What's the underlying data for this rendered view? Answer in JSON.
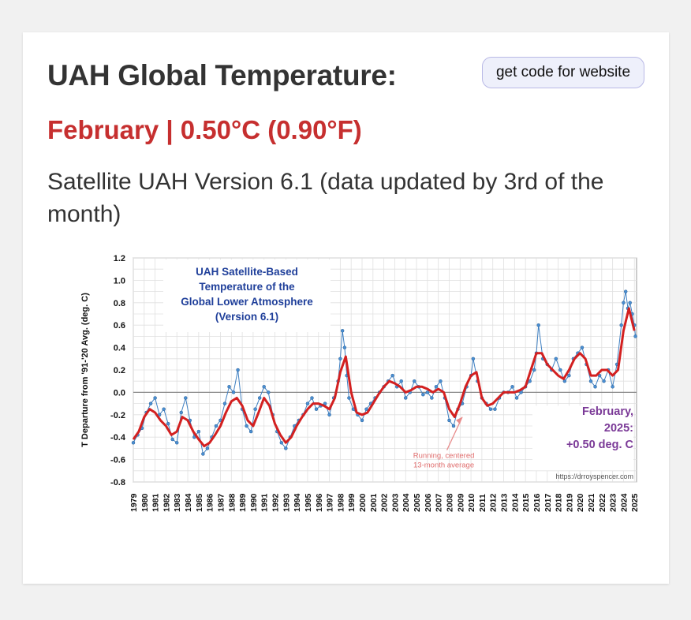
{
  "header": {
    "title": "UAH Global Temperature:",
    "code_button_label": "get code for website",
    "reading": "February | 0.50°C (0.90°F)",
    "subtitle": "Satellite UAH Version 6.1 (data updated by 3rd of the month)"
  },
  "colors": {
    "reading": "#c62f2f",
    "monthly_series": "#3e7fc1",
    "running_average": "#d32020",
    "inset_title": "#1f3f9a",
    "latest_value": "#7b3a97",
    "note_arrow": "#e88b8b"
  },
  "chart_data": {
    "type": "line",
    "title": "UAH Satellite-Based Temperature of the Global Lower Atmosphere (Version 6.1)",
    "title_lines": [
      "UAH Satellite-Based",
      "Temperature of the",
      "Global Lower Atmosphere",
      "(Version 6.1)"
    ],
    "ylabel": "T Departure from '91-'20 Avg. (deg. C)",
    "xlabel": "",
    "ylim": [
      -0.8,
      1.2
    ],
    "yticks": [
      "1.2",
      "1.0",
      "0.8",
      "0.6",
      "0.4",
      "0.2",
      "0.0",
      "-0.2",
      "-0.4",
      "-0.6",
      "-0.8"
    ],
    "xlim": [
      1979,
      2025.2
    ],
    "xticks": [
      "1979",
      "1980",
      "1981",
      "1982",
      "1983",
      "1984",
      "1985",
      "1986",
      "1987",
      "1988",
      "1989",
      "1990",
      "1991",
      "1992",
      "1993",
      "1994",
      "1995",
      "1996",
      "1997",
      "1998",
      "1999",
      "2000",
      "2001",
      "2002",
      "2003",
      "2004",
      "2005",
      "2006",
      "2007",
      "2008",
      "2009",
      "2010",
      "2011",
      "2012",
      "2013",
      "2014",
      "2015",
      "2016",
      "2017",
      "2018",
      "2019",
      "2020",
      "2021",
      "2022",
      "2023",
      "2024",
      "2025"
    ],
    "grid": true,
    "annotation_running": "Running, centered 13-month average",
    "annotation_running_lines": [
      "Running, centered",
      "13-month average"
    ],
    "annotation_latest_lines": [
      "February,",
      "2025:",
      "+0.50 deg. C"
    ],
    "credit": "https://drroyspencer.com",
    "series": [
      {
        "kind": "monthly",
        "x": [
          1979.0,
          1979.4,
          1979.8,
          1980.2,
          1980.6,
          1981.0,
          1981.4,
          1981.8,
          1982.2,
          1982.6,
          1983.0,
          1983.4,
          1983.8,
          1984.2,
          1984.6,
          1985.0,
          1985.4,
          1985.8,
          1986.2,
          1986.6,
          1987.0,
          1987.4,
          1987.8,
          1988.2,
          1988.6,
          1989.0,
          1989.4,
          1989.8,
          1990.2,
          1990.6,
          1991.0,
          1991.4,
          1991.8,
          1992.2,
          1992.6,
          1993.0,
          1993.4,
          1993.8,
          1994.2,
          1994.6,
          1995.0,
          1995.4,
          1995.8,
          1996.2,
          1996.6,
          1997.0,
          1997.4,
          1997.8,
          1998.0,
          1998.2,
          1998.4,
          1998.6,
          1998.8,
          1999.2,
          1999.6,
          2000.0,
          2000.4,
          2000.8,
          2001.2,
          2001.6,
          2002.0,
          2002.4,
          2002.8,
          2003.2,
          2003.6,
          2004.0,
          2004.4,
          2004.8,
          2005.2,
          2005.6,
          2006.0,
          2006.4,
          2006.8,
          2007.2,
          2007.6,
          2008.0,
          2008.4,
          2008.8,
          2009.2,
          2009.6,
          2010.0,
          2010.2,
          2010.6,
          2011.0,
          2011.4,
          2011.8,
          2012.2,
          2012.6,
          2013.0,
          2013.4,
          2013.8,
          2014.2,
          2014.6,
          2015.0,
          2015.4,
          2015.8,
          2016.0,
          2016.2,
          2016.6,
          2017.0,
          2017.4,
          2017.8,
          2018.2,
          2018.6,
          2019.0,
          2019.4,
          2019.8,
          2020.2,
          2020.6,
          2021.0,
          2021.4,
          2021.8,
          2022.2,
          2022.6,
          2023.0,
          2023.4,
          2023.8,
          2024.0,
          2024.2,
          2024.4,
          2024.6,
          2024.8,
          2025.0,
          2025.1
        ],
        "y": [
          -0.45,
          -0.38,
          -0.32,
          -0.18,
          -0.1,
          -0.05,
          -0.2,
          -0.15,
          -0.28,
          -0.42,
          -0.45,
          -0.18,
          -0.05,
          -0.25,
          -0.4,
          -0.35,
          -0.55,
          -0.5,
          -0.4,
          -0.3,
          -0.25,
          -0.1,
          0.05,
          0.0,
          0.2,
          -0.15,
          -0.3,
          -0.35,
          -0.15,
          -0.05,
          0.05,
          0.0,
          -0.2,
          -0.35,
          -0.45,
          -0.5,
          -0.4,
          -0.3,
          -0.25,
          -0.2,
          -0.1,
          -0.05,
          -0.15,
          -0.12,
          -0.1,
          -0.2,
          -0.05,
          0.1,
          0.3,
          0.55,
          0.4,
          0.15,
          -0.05,
          -0.15,
          -0.2,
          -0.25,
          -0.15,
          -0.1,
          -0.05,
          0.0,
          0.05,
          0.1,
          0.15,
          0.05,
          0.1,
          -0.05,
          0.0,
          0.1,
          0.05,
          -0.02,
          0.0,
          -0.05,
          0.05,
          0.1,
          -0.05,
          -0.25,
          -0.3,
          -0.15,
          -0.1,
          0.05,
          0.15,
          0.3,
          0.1,
          -0.05,
          -0.1,
          -0.15,
          -0.15,
          -0.05,
          0.0,
          0.0,
          0.05,
          -0.05,
          0.0,
          0.05,
          0.1,
          0.2,
          0.35,
          0.6,
          0.3,
          0.25,
          0.2,
          0.3,
          0.2,
          0.1,
          0.15,
          0.3,
          0.35,
          0.4,
          0.25,
          0.1,
          0.05,
          0.15,
          0.1,
          0.2,
          0.05,
          0.25,
          0.6,
          0.8,
          0.9,
          0.75,
          0.8,
          0.7,
          0.6,
          0.5
        ]
      },
      {
        "kind": "running-average",
        "name": "Running, centered 13-month average",
        "x": [
          1979.0,
          1979.5,
          1980.0,
          1980.5,
          1981.0,
          1981.5,
          1982.0,
          1982.5,
          1983.0,
          1983.5,
          1984.0,
          1984.5,
          1985.0,
          1985.5,
          1986.0,
          1986.5,
          1987.0,
          1987.5,
          1988.0,
          1988.5,
          1989.0,
          1989.5,
          1990.0,
          1990.5,
          1991.0,
          1991.5,
          1992.0,
          1992.5,
          1993.0,
          1993.5,
          1994.0,
          1994.5,
          1995.0,
          1995.5,
          1996.0,
          1996.5,
          1997.0,
          1997.5,
          1998.0,
          1998.5,
          1999.0,
          1999.5,
          2000.0,
          2000.5,
          2001.0,
          2001.5,
          2002.0,
          2002.5,
          2003.0,
          2003.5,
          2004.0,
          2004.5,
          2005.0,
          2005.5,
          2006.0,
          2006.5,
          2007.0,
          2007.5,
          2008.0,
          2008.5,
          2009.0,
          2009.5,
          2010.0,
          2010.5,
          2011.0,
          2011.5,
          2012.0,
          2012.5,
          2013.0,
          2013.5,
          2014.0,
          2014.5,
          2015.0,
          2015.5,
          2016.0,
          2016.5,
          2017.0,
          2017.5,
          2018.0,
          2018.5,
          2019.0,
          2019.5,
          2020.0,
          2020.5,
          2021.0,
          2021.5,
          2022.0,
          2022.5,
          2023.0,
          2023.5,
          2024.0,
          2024.5,
          2025.0
        ],
        "y": [
          -0.42,
          -0.35,
          -0.22,
          -0.15,
          -0.18,
          -0.25,
          -0.3,
          -0.38,
          -0.35,
          -0.22,
          -0.25,
          -0.35,
          -0.42,
          -0.48,
          -0.45,
          -0.38,
          -0.3,
          -0.18,
          -0.08,
          -0.05,
          -0.12,
          -0.25,
          -0.3,
          -0.18,
          -0.05,
          -0.12,
          -0.28,
          -0.38,
          -0.45,
          -0.4,
          -0.3,
          -0.22,
          -0.15,
          -0.1,
          -0.1,
          -0.12,
          -0.15,
          -0.05,
          0.18,
          0.32,
          0.0,
          -0.18,
          -0.2,
          -0.18,
          -0.1,
          -0.02,
          0.05,
          0.1,
          0.08,
          0.05,
          0.0,
          0.02,
          0.05,
          0.05,
          0.03,
          0.0,
          0.03,
          0.0,
          -0.15,
          -0.22,
          -0.1,
          0.05,
          0.15,
          0.18,
          -0.05,
          -0.12,
          -0.1,
          -0.05,
          0.0,
          0.0,
          0.0,
          0.02,
          0.05,
          0.2,
          0.35,
          0.35,
          0.25,
          0.2,
          0.15,
          0.12,
          0.2,
          0.3,
          0.35,
          0.3,
          0.15,
          0.15,
          0.2,
          0.2,
          0.15,
          0.2,
          0.55,
          0.75,
          0.55
        ]
      }
    ]
  }
}
